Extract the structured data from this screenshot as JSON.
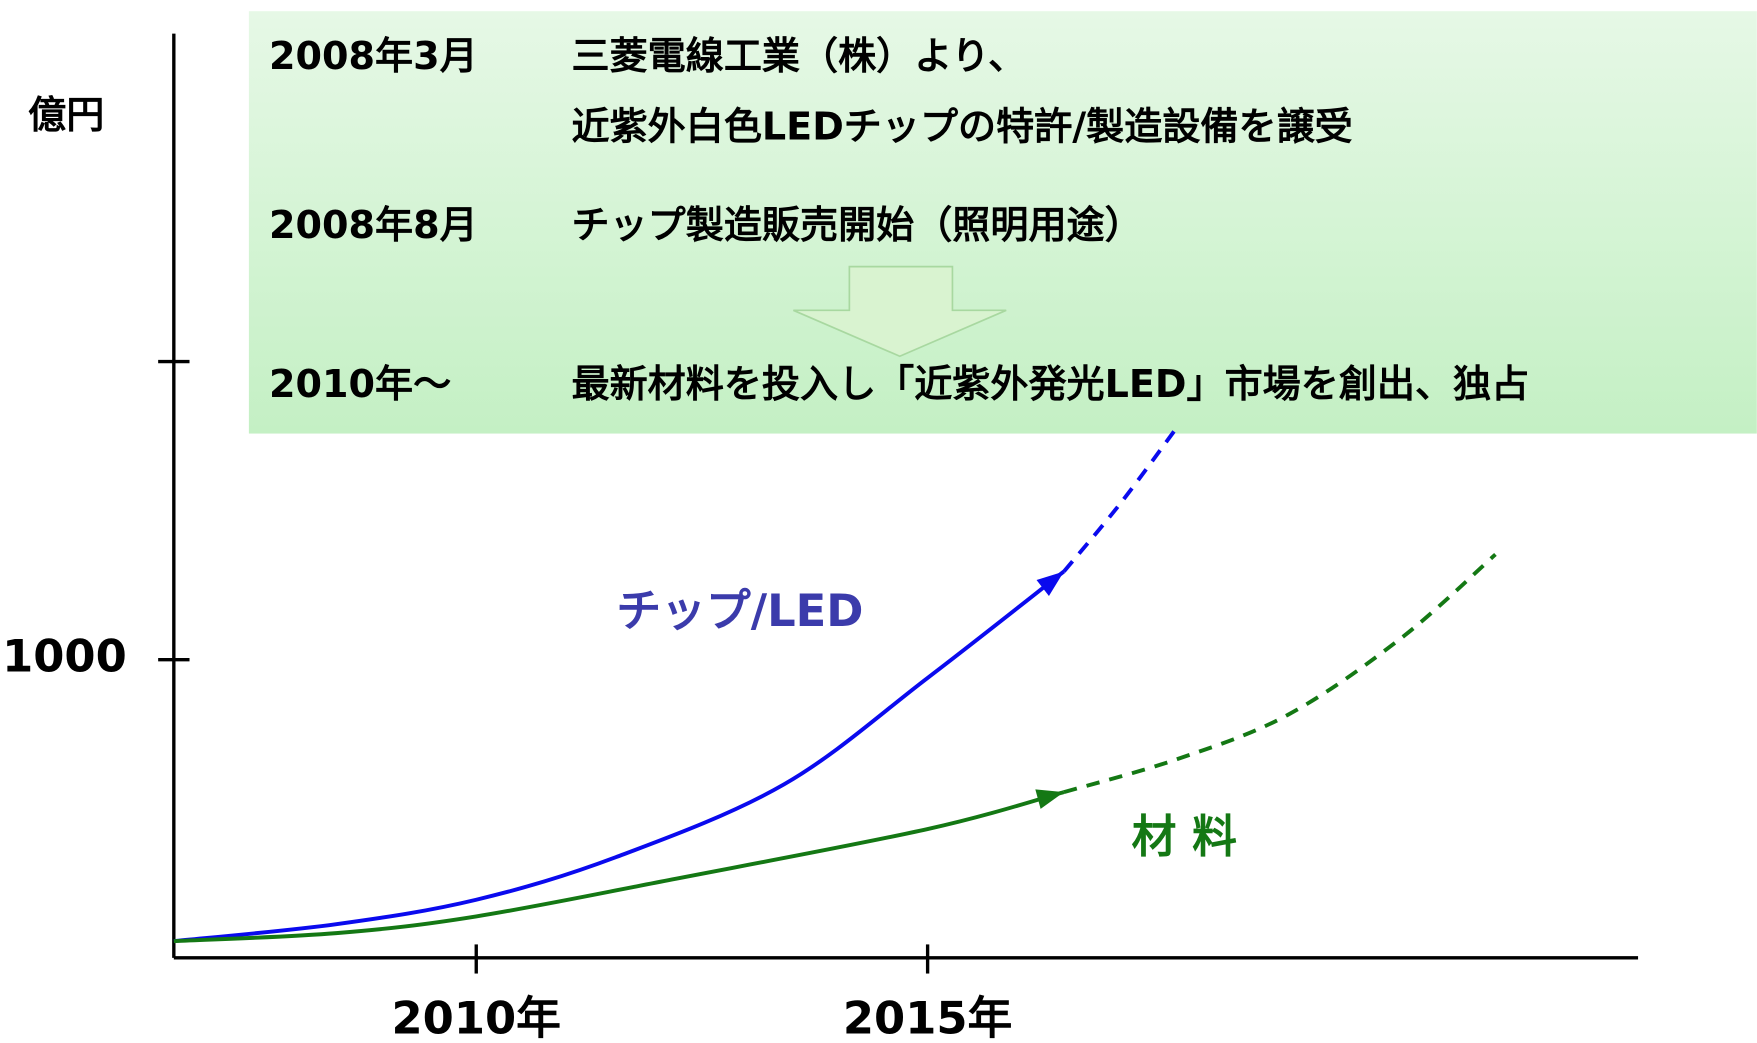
{
  "chart_data": {
    "type": "line",
    "y_unit": "億円",
    "xlim": [
      2006.65,
      2022.87
    ],
    "ylim": [
      0,
      3100
    ],
    "xticks": [
      {
        "value": 2010,
        "label": "2010年"
      },
      {
        "value": 2015,
        "label": "2015年"
      }
    ],
    "yticks": [
      1000,
      {
        "value": 2000,
        "label": null
      }
    ],
    "annotations": [
      {
        "date": "2008年3月",
        "text": [
          "三菱電線工業（株）より、",
          "近紫外白色LEDチップの特許/製造設備を譲受"
        ]
      },
      {
        "date": "2008年8月",
        "text": [
          "チップ製造販売開始（照明用途）"
        ]
      },
      {
        "date": "2010年～",
        "text": [
          "最新材料を投入し「近紫外発光LED」市場を創出、独占"
        ]
      }
    ],
    "series": [
      {
        "name": "チップ/LED",
        "color": "#0a0aee",
        "label_color": "#3b3bab",
        "dashed_from": 2016.51,
        "x": [
          2006.65,
          2008.45,
          2010,
          2011.55,
          2013.41,
          2015,
          2016.51,
          2017.13,
          2017.73
        ],
        "values": [
          56,
          113,
          195,
          338,
          582,
          939,
          1296,
          1522,
          1766
        ]
      },
      {
        "name": "材 料",
        "color": "#147814",
        "label_color": "#147814",
        "dashed_from": 2016.51,
        "x": [
          2006.65,
          2008.45,
          2010,
          2012.17,
          2015,
          2016.51,
          2017.75,
          2018.99,
          2020.24,
          2021.29
        ],
        "values": [
          56,
          83,
          139,
          263,
          432,
          556,
          665,
          815,
          1071,
          1353
        ]
      }
    ]
  }
}
